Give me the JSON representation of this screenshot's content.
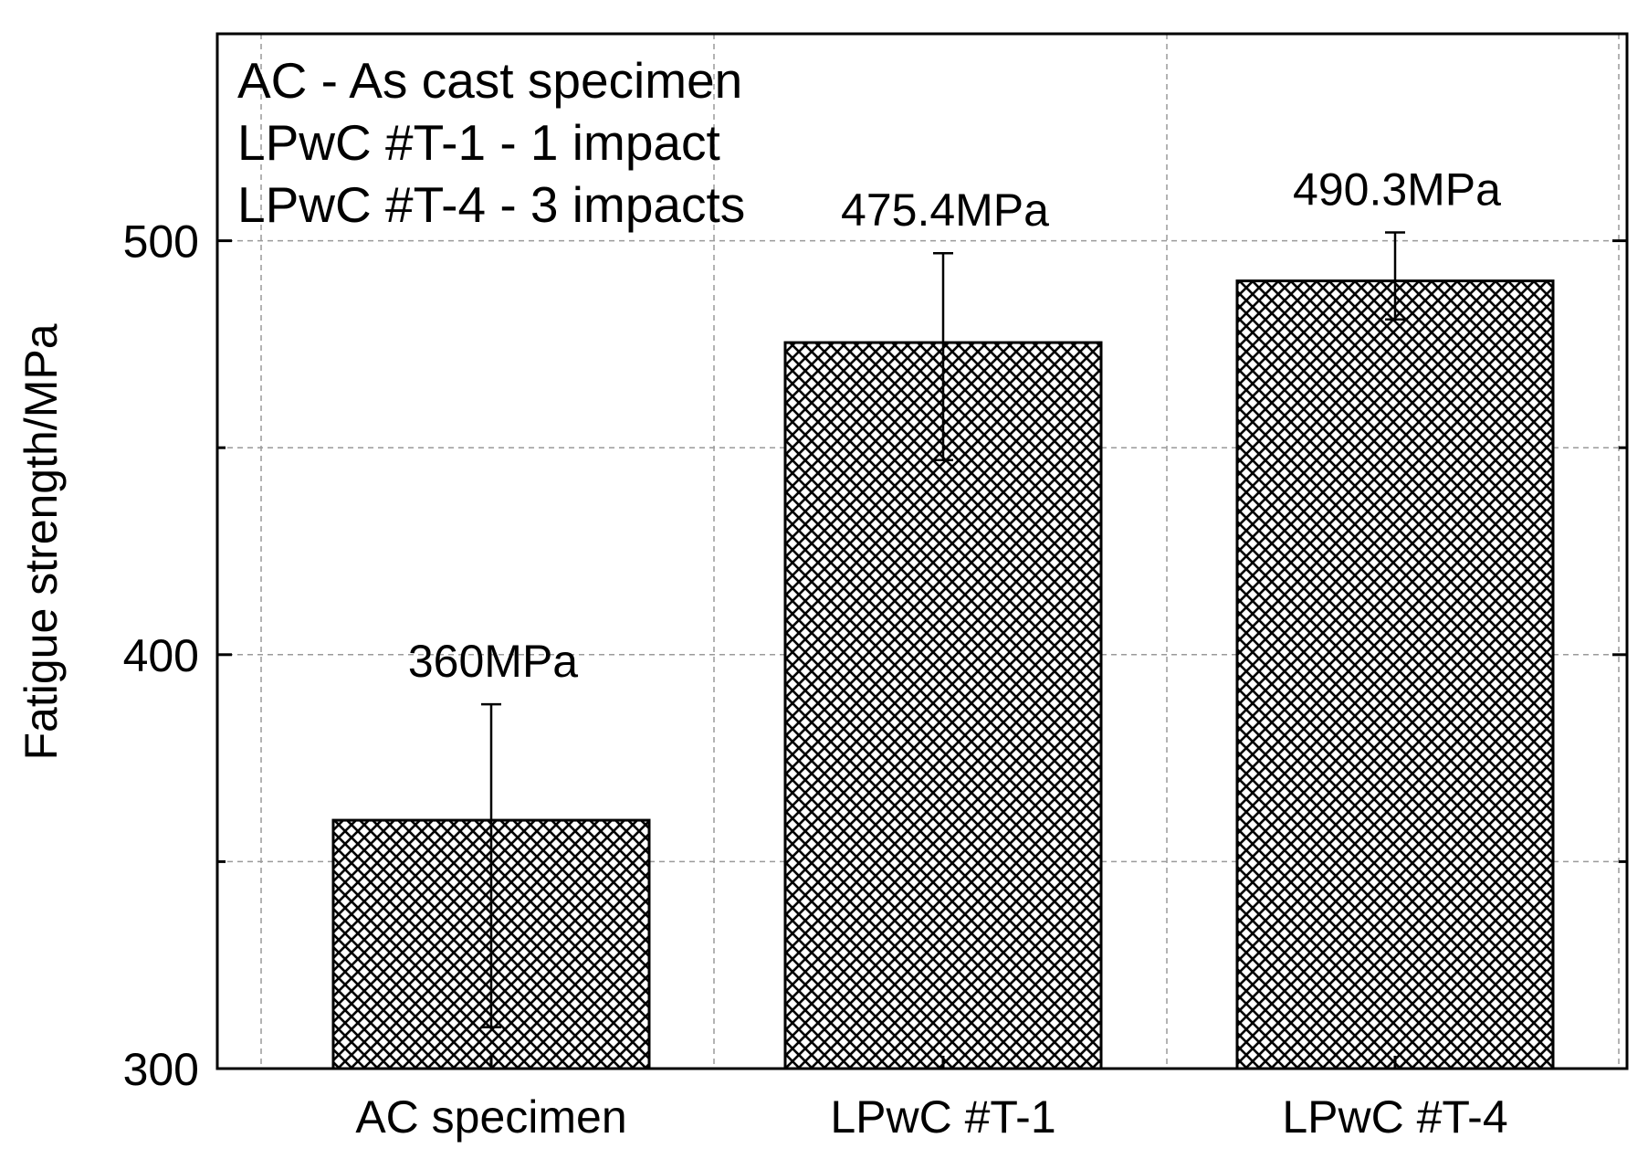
{
  "chart_data": {
    "type": "bar",
    "title": "",
    "xlabel": "",
    "ylabel": "Fatigue strength/MPa",
    "ylim": [
      300,
      550
    ],
    "yticks": [
      300,
      400,
      500
    ],
    "grid": true,
    "categories": [
      "AC specimen",
      "LPwC #T-1",
      "LPwC #T-4"
    ],
    "values": [
      360,
      475.4,
      490.3
    ],
    "error_upper": [
      388,
      497,
      502
    ],
    "error_lower": [
      310,
      447,
      481
    ],
    "value_labels": [
      "360MPa",
      "475.4MPa",
      "490.3MPa"
    ],
    "legend_text": [
      "AC - As cast specimen",
      "LPwC #T-1 - 1 impact",
      "LPwC #T-4 - 3 impacts"
    ],
    "bar_pattern": "cross-hatch"
  }
}
